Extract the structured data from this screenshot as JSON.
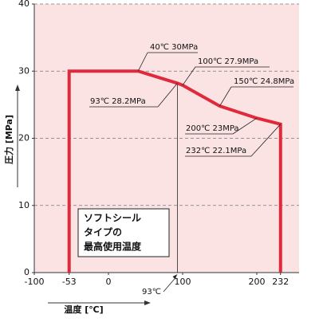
{
  "chart_data": {
    "type": "line",
    "x_label": "温度 [℃]",
    "y_label": "圧力 [MPa]",
    "x": [
      -53,
      -53,
      40,
      93,
      100,
      150,
      200,
      232,
      232
    ],
    "series": [
      {
        "name": "ソフトシール",
        "color": "#e02a3c",
        "values": [
          0,
          30,
          30,
          28.2,
          27.9,
          24.8,
          23,
          22.1,
          0
        ]
      }
    ],
    "xlim": [
      -100,
      257
    ],
    "ylim": [
      0,
      40
    ],
    "xticks": [
      -100,
      -53,
      0,
      100,
      200,
      232
    ],
    "yticks": [
      0,
      10,
      20,
      30,
      40
    ],
    "grid": true,
    "background": "#fbe3e3",
    "annotations": [
      "40℃ 30MPa",
      "100℃ 27.9MPa",
      "150℃ 24.8MPa",
      "200℃ 23MPa",
      "232℃ 22.1MPa",
      "93℃ 28.2MPa",
      "93℃"
    ],
    "box_lines": [
      "ソフトシール",
      "タイプの",
      "最高使用温度"
    ]
  }
}
